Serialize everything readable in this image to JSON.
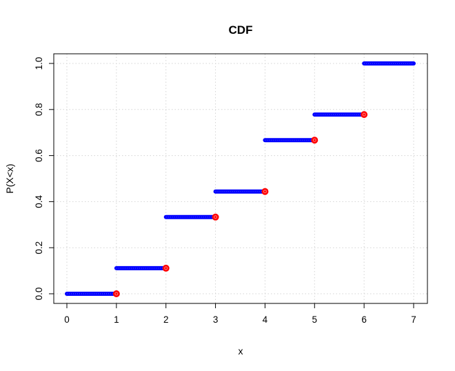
{
  "chart_data": {
    "type": "step",
    "title": "CDF",
    "xlabel": "x",
    "ylabel": "P(X<x)",
    "xlim": [
      0,
      7
    ],
    "ylim": [
      0,
      1
    ],
    "xticks": [
      "0",
      "1",
      "2",
      "3",
      "4",
      "5",
      "6",
      "7"
    ],
    "yticks": [
      "0.0",
      "0.2",
      "0.4",
      "0.6",
      "0.8",
      "1.0"
    ],
    "grid": true,
    "segments": [
      {
        "x_start": 0,
        "x_end": 1,
        "y": 0.0
      },
      {
        "x_start": 1,
        "x_end": 2,
        "y": 0.111
      },
      {
        "x_start": 2,
        "x_end": 3,
        "y": 0.333
      },
      {
        "x_start": 3,
        "x_end": 4,
        "y": 0.444
      },
      {
        "x_start": 4,
        "x_end": 5,
        "y": 0.667
      },
      {
        "x_start": 5,
        "x_end": 6,
        "y": 0.778
      },
      {
        "x_start": 6,
        "x_end": 7,
        "y": 1.0
      }
    ],
    "open_points": [
      {
        "x": 1,
        "y": 0.0
      },
      {
        "x": 2,
        "y": 0.111
      },
      {
        "x": 3,
        "y": 0.333
      },
      {
        "x": 4,
        "y": 0.444
      },
      {
        "x": 5,
        "y": 0.667
      },
      {
        "x": 6,
        "y": 0.778
      }
    ],
    "colors": {
      "segment": "#0000ff",
      "endpoint": "#ff0000",
      "grid": "#d3d3d3",
      "box": "#000000"
    }
  }
}
